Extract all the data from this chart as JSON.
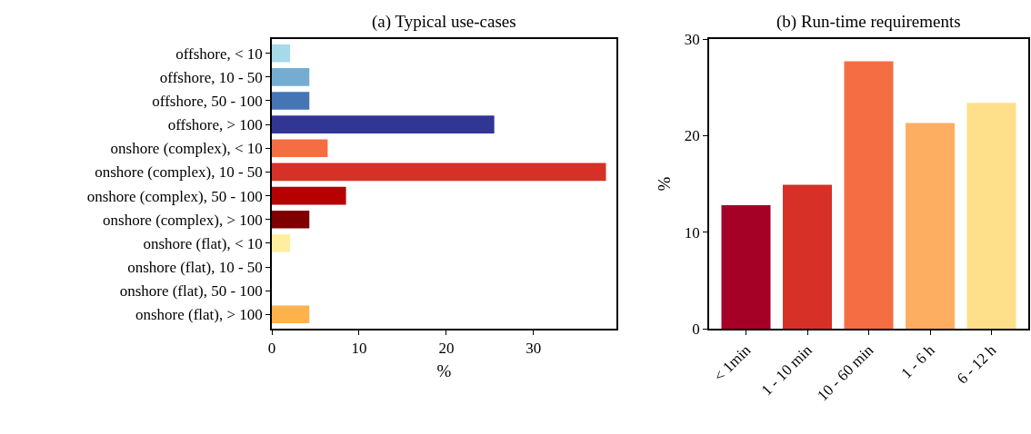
{
  "chart_data": [
    {
      "type": "bar",
      "orientation": "horizontal",
      "title": "(a) Typical use-cases",
      "xlabel": "%",
      "categories": [
        "offshore, < 10",
        "offshore, 10 - 50",
        "offshore, 50 - 100",
        "offshore, > 100",
        "onshore (complex), < 10",
        "onshore (complex), 10 - 50",
        "onshore (complex), 50 - 100",
        "onshore (complex), > 100",
        "onshore (flat), < 10",
        "onshore (flat), 10 - 50",
        "onshore (flat), 50 - 100",
        "onshore (flat), > 100"
      ],
      "values": [
        2.1,
        4.3,
        4.3,
        25.5,
        6.4,
        38.3,
        8.5,
        4.3,
        2.1,
        0,
        0,
        4.3
      ],
      "colors": [
        "#a6d9ea",
        "#74add1",
        "#4575b4",
        "#313695",
        "#f46d43",
        "#d73027",
        "#b70000",
        "#7f0000",
        "#ffeda0",
        "#fed976",
        "#feb24c",
        "#feb24c"
      ],
      "xlim": [
        0,
        39.5
      ],
      "xticks": [
        0,
        10,
        20,
        30
      ]
    },
    {
      "type": "bar",
      "title": "(b) Run-time requirements",
      "ylabel": "%",
      "categories": [
        "< 1min",
        "1 - 10 min",
        "10 - 60 min",
        "1 - 6 h",
        "6 - 12 h"
      ],
      "values": [
        12.8,
        14.9,
        27.7,
        21.3,
        23.4
      ],
      "colors": [
        "#a50026",
        "#d73027",
        "#f46d43",
        "#fdae61",
        "#fee08b"
      ],
      "ylim": [
        0,
        30
      ],
      "yticks": [
        0,
        10,
        20,
        30
      ]
    }
  ]
}
